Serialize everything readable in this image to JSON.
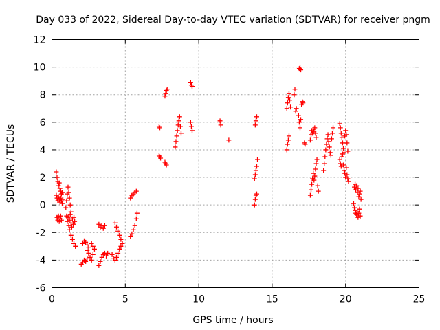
{
  "chart_data": {
    "type": "scatter",
    "title": "Day 033 of 2022, Sidereal Day-to-day VTEC variation (SDTVAR) for receiver pngm",
    "xlabel": "GPS time / hours",
    "ylabel": "SDTVAR / TECUs",
    "xlim": [
      0,
      25
    ],
    "ylim": [
      -6,
      12
    ],
    "xticks": [
      0,
      5,
      10,
      15,
      20,
      25
    ],
    "yticks": [
      -6,
      -4,
      -2,
      0,
      2,
      4,
      6,
      8,
      10,
      12
    ],
    "grid": true,
    "marker": "plus",
    "series": [
      {
        "name": "SDTVAR",
        "color": "#ff0000",
        "segments": [
          [
            [
              0.3,
              2.4
            ],
            [
              0.35,
              2.0
            ],
            [
              0.4,
              1.7
            ],
            [
              0.45,
              1.4
            ],
            [
              0.5,
              1.6
            ],
            [
              0.55,
              1.2
            ],
            [
              0.6,
              1.0
            ],
            [
              0.65,
              0.8
            ],
            [
              0.7,
              0.9
            ]
          ],
          [
            [
              0.3,
              0.7
            ],
            [
              0.35,
              0.5
            ],
            [
              0.4,
              0.3
            ],
            [
              0.45,
              0.6
            ],
            [
              0.5,
              0.4
            ],
            [
              0.55,
              0.2
            ],
            [
              0.6,
              0.5
            ],
            [
              0.65,
              0.3
            ],
            [
              0.7,
              0.1
            ],
            [
              0.75,
              0.4
            ]
          ],
          [
            [
              0.35,
              -0.9
            ],
            [
              0.4,
              -1.1
            ],
            [
              0.45,
              -0.8
            ],
            [
              0.5,
              -1.2
            ],
            [
              0.55,
              -1.0
            ],
            [
              0.6,
              -0.8
            ],
            [
              0.65,
              -1.1
            ]
          ],
          [
            [
              0.95,
              -0.2
            ],
            [
              1.0,
              0.3
            ],
            [
              1.05,
              0.8
            ],
            [
              1.1,
              1.3
            ],
            [
              1.15,
              0.9
            ],
            [
              1.2,
              0.5
            ],
            [
              1.25,
              0.0
            ],
            [
              1.3,
              -0.5
            ]
          ],
          [
            [
              1.0,
              -0.8
            ],
            [
              1.05,
              -1.2
            ],
            [
              1.1,
              -0.9
            ],
            [
              1.15,
              -1.5
            ],
            [
              1.2,
              -1.1
            ],
            [
              1.25,
              -0.7
            ],
            [
              1.3,
              -1.3
            ],
            [
              1.35,
              -1.6
            ],
            [
              1.4,
              -1.0
            ],
            [
              1.45,
              -1.4
            ],
            [
              1.5,
              -0.9
            ],
            [
              1.55,
              -1.2
            ]
          ],
          [
            [
              1.2,
              -1.8
            ],
            [
              1.3,
              -2.2
            ],
            [
              1.4,
              -2.5
            ],
            [
              1.5,
              -2.8
            ],
            [
              1.6,
              -3.0
            ]
          ],
          [
            [
              2.0,
              -4.3
            ],
            [
              2.1,
              -4.2
            ],
            [
              2.2,
              -4.0
            ],
            [
              2.3,
              -4.1
            ],
            [
              2.4,
              -3.9
            ]
          ],
          [
            [
              2.1,
              -2.8
            ],
            [
              2.2,
              -2.6
            ],
            [
              2.3,
              -2.7
            ],
            [
              2.4,
              -2.9
            ],
            [
              2.5,
              -3.1
            ]
          ],
          [
            [
              2.4,
              -3.3
            ],
            [
              2.5,
              -3.5
            ],
            [
              2.6,
              -3.8
            ],
            [
              2.7,
              -4.0
            ],
            [
              2.8,
              -3.6
            ],
            [
              2.9,
              -3.2
            ],
            [
              2.7,
              -2.8
            ],
            [
              2.8,
              -3.0
            ]
          ],
          [
            [
              3.2,
              -1.4
            ],
            [
              3.3,
              -1.6
            ],
            [
              3.4,
              -1.5
            ],
            [
              3.5,
              -1.7
            ],
            [
              3.6,
              -1.5
            ]
          ],
          [
            [
              3.2,
              -4.4
            ],
            [
              3.3,
              -4.1
            ],
            [
              3.4,
              -3.8
            ],
            [
              3.5,
              -3.6
            ],
            [
              3.6,
              -3.5
            ],
            [
              3.7,
              -3.7
            ],
            [
              3.8,
              -3.5
            ]
          ],
          [
            [
              4.1,
              -3.6
            ],
            [
              4.2,
              -3.9
            ],
            [
              4.3,
              -4.0
            ],
            [
              4.4,
              -3.8
            ],
            [
              4.5,
              -3.5
            ],
            [
              4.6,
              -3.2
            ],
            [
              4.7,
              -3.0
            ]
          ],
          [
            [
              4.3,
              -1.3
            ],
            [
              4.4,
              -1.6
            ],
            [
              4.5,
              -1.9
            ],
            [
              4.6,
              -2.2
            ],
            [
              4.7,
              -2.5
            ],
            [
              4.8,
              -2.8
            ]
          ],
          [
            [
              5.35,
              -2.3
            ],
            [
              5.45,
              -2.1
            ],
            [
              5.55,
              -1.8
            ],
            [
              5.65,
              -1.5
            ],
            [
              5.75,
              -1.0
            ],
            [
              5.8,
              -0.6
            ]
          ],
          [
            [
              5.35,
              0.5
            ],
            [
              5.45,
              0.7
            ],
            [
              5.55,
              0.8
            ],
            [
              5.65,
              0.9
            ],
            [
              5.75,
              1.0
            ]
          ],
          [
            [
              7.3,
              5.7
            ],
            [
              7.35,
              5.6
            ]
          ],
          [
            [
              7.3,
              3.6
            ],
            [
              7.35,
              3.5
            ],
            [
              7.4,
              3.4
            ]
          ],
          [
            [
              7.7,
              3.1
            ],
            [
              7.75,
              3.0
            ],
            [
              7.8,
              2.9
            ]
          ],
          [
            [
              7.7,
              7.9
            ],
            [
              7.75,
              8.1
            ],
            [
              7.8,
              8.3
            ],
            [
              7.85,
              8.4
            ]
          ],
          [
            [
              8.4,
              4.2
            ],
            [
              8.45,
              4.6
            ],
            [
              8.5,
              5.0
            ],
            [
              8.55,
              5.4
            ],
            [
              8.6,
              5.8
            ],
            [
              8.65,
              6.1
            ],
            [
              8.7,
              6.4
            ],
            [
              8.75,
              5.7
            ],
            [
              8.8,
              5.2
            ]
          ],
          [
            [
              9.45,
              8.9
            ],
            [
              9.5,
              8.7
            ],
            [
              9.55,
              8.6
            ]
          ],
          [
            [
              9.45,
              6.0
            ],
            [
              9.5,
              5.7
            ],
            [
              9.55,
              5.4
            ]
          ],
          [
            [
              11.45,
              6.1
            ],
            [
              11.5,
              5.8
            ]
          ],
          [
            [
              12.05,
              4.7
            ]
          ],
          [
            [
              13.8,
              0.0
            ],
            [
              13.85,
              0.4
            ],
            [
              13.9,
              0.7
            ],
            [
              13.95,
              0.8
            ]
          ],
          [
            [
              13.8,
              1.9
            ],
            [
              13.85,
              2.2
            ],
            [
              13.9,
              2.5
            ],
            [
              13.95,
              2.8
            ],
            [
              14.0,
              3.3
            ]
          ],
          [
            [
              13.85,
              5.8
            ],
            [
              13.9,
              6.1
            ],
            [
              13.95,
              6.4
            ]
          ],
          [
            [
              16.0,
              4.0
            ],
            [
              16.05,
              4.4
            ],
            [
              16.1,
              4.7
            ],
            [
              16.15,
              5.0
            ]
          ],
          [
            [
              16.0,
              7.0
            ],
            [
              16.05,
              7.4
            ],
            [
              16.1,
              7.8
            ],
            [
              16.15,
              8.1
            ],
            [
              16.2,
              7.6
            ],
            [
              16.25,
              7.1
            ]
          ],
          [
            [
              16.5,
              8.0
            ],
            [
              16.55,
              8.4
            ],
            [
              16.6,
              6.8
            ],
            [
              16.65,
              7.0
            ]
          ],
          [
            [
              16.8,
              6.5
            ],
            [
              16.85,
              6.0
            ],
            [
              16.9,
              5.6
            ],
            [
              16.95,
              6.2
            ]
          ],
          [
            [
              16.85,
              9.9
            ],
            [
              16.9,
              10.0
            ],
            [
              16.95,
              9.8
            ]
          ],
          [
            [
              17.0,
              7.3
            ],
            [
              17.05,
              7.5
            ],
            [
              17.1,
              7.4
            ]
          ],
          [
            [
              17.2,
              4.5
            ],
            [
              17.25,
              4.4
            ]
          ],
          [
            [
              17.6,
              4.7
            ],
            [
              17.65,
              5.1
            ],
            [
              17.7,
              5.4
            ],
            [
              17.75,
              5.2
            ],
            [
              17.8,
              5.5
            ],
            [
              17.85,
              5.3
            ],
            [
              17.9,
              5.6
            ],
            [
              17.95,
              5.2
            ],
            [
              18.0,
              4.9
            ]
          ],
          [
            [
              17.6,
              0.7
            ],
            [
              17.65,
              1.1
            ],
            [
              17.7,
              1.5
            ],
            [
              17.75,
              1.9
            ],
            [
              17.8,
              2.3
            ],
            [
              17.85,
              1.8
            ],
            [
              17.9,
              2.1
            ],
            [
              17.95,
              2.6
            ],
            [
              18.0,
              3.0
            ],
            [
              18.05,
              3.3
            ],
            [
              18.1,
              1.4
            ],
            [
              18.15,
              1.0
            ]
          ],
          [
            [
              18.5,
              2.5
            ],
            [
              18.55,
              3.0
            ],
            [
              18.6,
              3.5
            ],
            [
              18.65,
              4.0
            ],
            [
              18.7,
              4.4
            ],
            [
              18.75,
              4.8
            ],
            [
              18.8,
              5.1
            ],
            [
              18.85,
              4.6
            ],
            [
              18.9,
              4.2
            ],
            [
              18.95,
              3.8
            ],
            [
              19.0,
              3.6
            ],
            [
              19.05,
              4.8
            ],
            [
              19.1,
              5.2
            ],
            [
              19.15,
              5.6
            ]
          ],
          [
            [
              19.6,
              5.9
            ],
            [
              19.65,
              5.6
            ],
            [
              19.7,
              5.2
            ],
            [
              19.75,
              4.9
            ],
            [
              19.8,
              4.5
            ],
            [
              19.85,
              4.1
            ],
            [
              19.9,
              3.8
            ],
            [
              19.95,
              5.0
            ],
            [
              20.0,
              5.4
            ],
            [
              20.05,
              5.1
            ],
            [
              20.1,
              4.5
            ],
            [
              20.15,
              3.9
            ]
          ],
          [
            [
              19.6,
              3.3
            ],
            [
              19.65,
              3.0
            ],
            [
              19.7,
              2.8
            ],
            [
              19.75,
              3.5
            ],
            [
              19.8,
              3.7
            ],
            [
              19.85,
              2.9
            ],
            [
              19.9,
              2.5
            ],
            [
              19.95,
              2.3
            ],
            [
              20.0,
              2.0
            ],
            [
              20.05,
              2.7
            ],
            [
              20.1,
              2.2
            ],
            [
              20.15,
              1.9
            ],
            [
              20.2,
              1.7
            ]
          ],
          [
            [
              20.55,
              0.1
            ],
            [
              20.6,
              -0.2
            ],
            [
              20.65,
              -0.4
            ],
            [
              20.7,
              -0.6
            ],
            [
              20.75,
              -0.7
            ],
            [
              20.8,
              -0.5
            ],
            [
              20.85,
              -0.9
            ],
            [
              20.9,
              -0.6
            ],
            [
              20.95,
              -0.3
            ],
            [
              21.0,
              -0.8
            ]
          ],
          [
            [
              20.6,
              1.3
            ],
            [
              20.65,
              1.5
            ],
            [
              20.7,
              1.1
            ],
            [
              20.75,
              1.4
            ],
            [
              20.8,
              0.9
            ],
            [
              20.85,
              1.2
            ],
            [
              20.9,
              0.6
            ],
            [
              20.95,
              0.8
            ],
            [
              21.0,
              1.0
            ],
            [
              21.05,
              0.4
            ]
          ]
        ]
      }
    ]
  }
}
